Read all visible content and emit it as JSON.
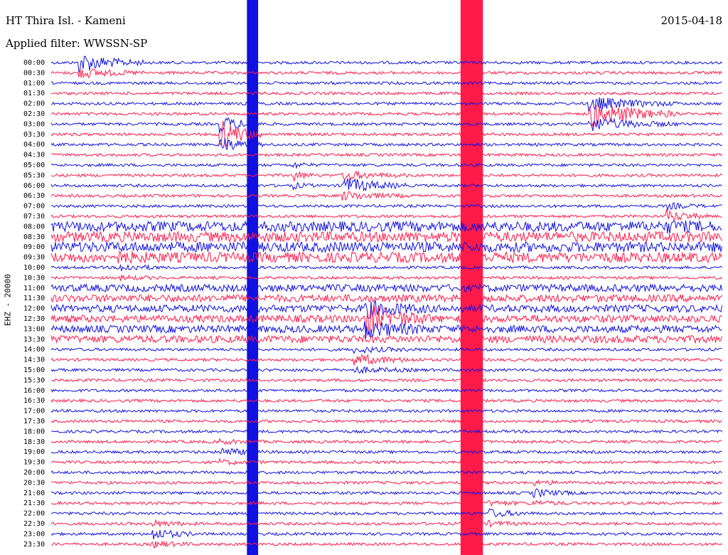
{
  "header": {
    "station": "HT Thira Isl. - Kameni",
    "date": "2015-04-18",
    "filter": "Applied filter: WWSSN-SP",
    "channel": "EHZ - 20000"
  },
  "colors": {
    "even_rows": "#1010e0",
    "odd_rows": "#ff1a4a",
    "background": "#ffffff"
  },
  "chart_data": {
    "type": "seismogram-helicorder",
    "ylabel": "EHZ - 20000",
    "rows": [
      "00:00",
      "00:30",
      "01:00",
      "01:30",
      "02:00",
      "02:30",
      "03:00",
      "03:30",
      "04:00",
      "04:30",
      "05:00",
      "05:30",
      "06:00",
      "06:30",
      "07:00",
      "07:30",
      "08:00",
      "08:30",
      "09:00",
      "09:30",
      "10:00",
      "10:30",
      "11:00",
      "11:30",
      "12:00",
      "12:30",
      "13:00",
      "13:30",
      "14:00",
      "14:30",
      "15:00",
      "15:30",
      "16:00",
      "16:30",
      "17:00",
      "17:30",
      "18:00",
      "18:30",
      "19:00",
      "19:30",
      "20:00",
      "20:30",
      "21:00",
      "21:30",
      "22:00",
      "22:30",
      "23:00",
      "23:30"
    ],
    "row_colors": [
      "blue",
      "red"
    ],
    "minutes_per_row": 30,
    "noise_windows": [
      {
        "from": 16,
        "to": 19,
        "level": 0.9
      },
      {
        "from": 22,
        "to": 27,
        "level": 0.6
      }
    ],
    "events": [
      {
        "row": 0,
        "minute": 1.2,
        "amp": 3.5,
        "dur": 3
      },
      {
        "row": 7,
        "minute": 7.5,
        "amp": 6,
        "dur": 2
      },
      {
        "row": 11,
        "minute": 10.8,
        "amp": 2,
        "dur": 1
      },
      {
        "row": 5,
        "minute": 24,
        "amp": 5,
        "dur": 4
      },
      {
        "row": 12,
        "minute": 13,
        "amp": 3,
        "dur": 3
      },
      {
        "row": 25,
        "minute": 14,
        "amp": 5,
        "dur": 3
      },
      {
        "row": 29,
        "minute": 13.5,
        "amp": 2,
        "dur": 3
      },
      {
        "row": 20,
        "minute": 3,
        "amp": 1.5,
        "dur": 2
      },
      {
        "row": 38,
        "minute": 7.5,
        "amp": 1.5,
        "dur": 2
      },
      {
        "row": 46,
        "minute": 4.5,
        "amp": 2,
        "dur": 2
      },
      {
        "row": 44,
        "minute": 19.5,
        "amp": 1.5,
        "dur": 2
      },
      {
        "row": 42,
        "minute": 21.5,
        "amp": 1.5,
        "dur": 2
      },
      {
        "row": 15,
        "minute": 27.5,
        "amp": 2,
        "dur": 2
      }
    ],
    "vertical_bands": [
      {
        "minute": 9.0,
        "width_min": 0.5,
        "color": "blue"
      },
      {
        "minute": 18.8,
        "width_min": 1.0,
        "color": "red"
      }
    ]
  }
}
